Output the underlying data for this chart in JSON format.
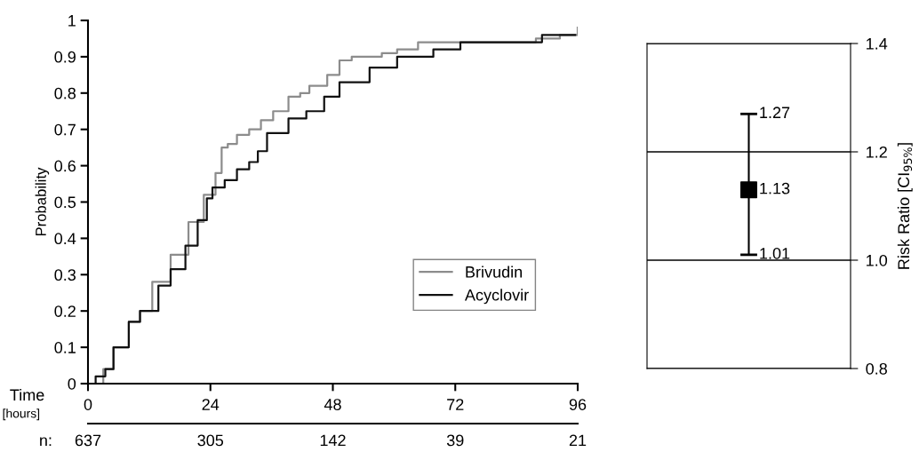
{
  "chart_data": [
    {
      "type": "step",
      "xlabel": "Time [hours]",
      "ylabel": "Probability",
      "xlim": [
        0,
        96
      ],
      "xticks": [
        0,
        24,
        48,
        72,
        96
      ],
      "ylim": [
        0,
        1
      ],
      "yticks": [
        0,
        0.1,
        0.2,
        0.3,
        0.4,
        0.5,
        0.6,
        0.7,
        0.8,
        0.9,
        1
      ],
      "legend": "bottom right",
      "grid": false,
      "annotations": [
        "n:",
        "637",
        "305",
        "142",
        "39",
        "21"
      ],
      "series": [
        {
          "name": "Brivudin",
          "color": "#8c8c8c",
          "x": [
            0,
            1.4,
            3,
            5,
            8,
            10.2,
            12.6,
            16.2,
            19.7,
            22.7,
            25,
            26.2,
            27.4,
            29.2,
            31.6,
            33.9,
            36.3,
            39.3,
            41.6,
            43.4,
            46.9,
            49.3,
            51.7,
            57.6,
            60.6,
            64.7,
            70,
            73,
            87.8,
            92.5,
            96
          ],
          "values": [
            0,
            0,
            0.04,
            0.1,
            0.17,
            0.2,
            0.28,
            0.355,
            0.445,
            0.52,
            0.58,
            0.65,
            0.66,
            0.685,
            0.7,
            0.725,
            0.75,
            0.79,
            0.8,
            0.82,
            0.85,
            0.89,
            0.9,
            0.91,
            0.92,
            0.94,
            0.94,
            0.94,
            0.95,
            0.96,
            0.98
          ]
        },
        {
          "name": "Acyclovir",
          "color": "#111111",
          "x": [
            0,
            1.5,
            3.4,
            5,
            8,
            10.2,
            13.8,
            16.2,
            19.1,
            21.5,
            23.3,
            24.4,
            26.8,
            29.2,
            31.6,
            33.3,
            35.1,
            39.3,
            42.8,
            46.3,
            49.3,
            55.2,
            60.6,
            67.7,
            71.2,
            73,
            89,
            95.5
          ],
          "values": [
            0,
            0.02,
            0.04,
            0.1,
            0.17,
            0.2,
            0.27,
            0.315,
            0.38,
            0.45,
            0.51,
            0.54,
            0.56,
            0.59,
            0.61,
            0.64,
            0.69,
            0.73,
            0.75,
            0.79,
            0.83,
            0.87,
            0.9,
            0.92,
            0.92,
            0.94,
            0.96,
            0.96
          ]
        }
      ]
    },
    {
      "type": "scatter",
      "ylabel": "Risk Ratio [CI$_{95%}$]",
      "categories": [
        null
      ],
      "values": [
        1.13
      ],
      "errors": [
        [
          1.01,
          1.27
        ]
      ],
      "value_labels": [
        "1.13"
      ],
      "color": "#000000",
      "marker": "square",
      "ylim": [
        0.8,
        1.4
      ],
      "yticks": [
        {
          "value": 0.8,
          "label": "0.8"
        },
        {
          "value": 1.0,
          "label": "1.0"
        },
        {
          "value": 1.2,
          "label": "1.2"
        },
        {
          "value": 1.4,
          "label": "1.4"
        }
      ],
      "grid": "y",
      "annotations": [
        "1.27",
        "1.01"
      ]
    }
  ]
}
